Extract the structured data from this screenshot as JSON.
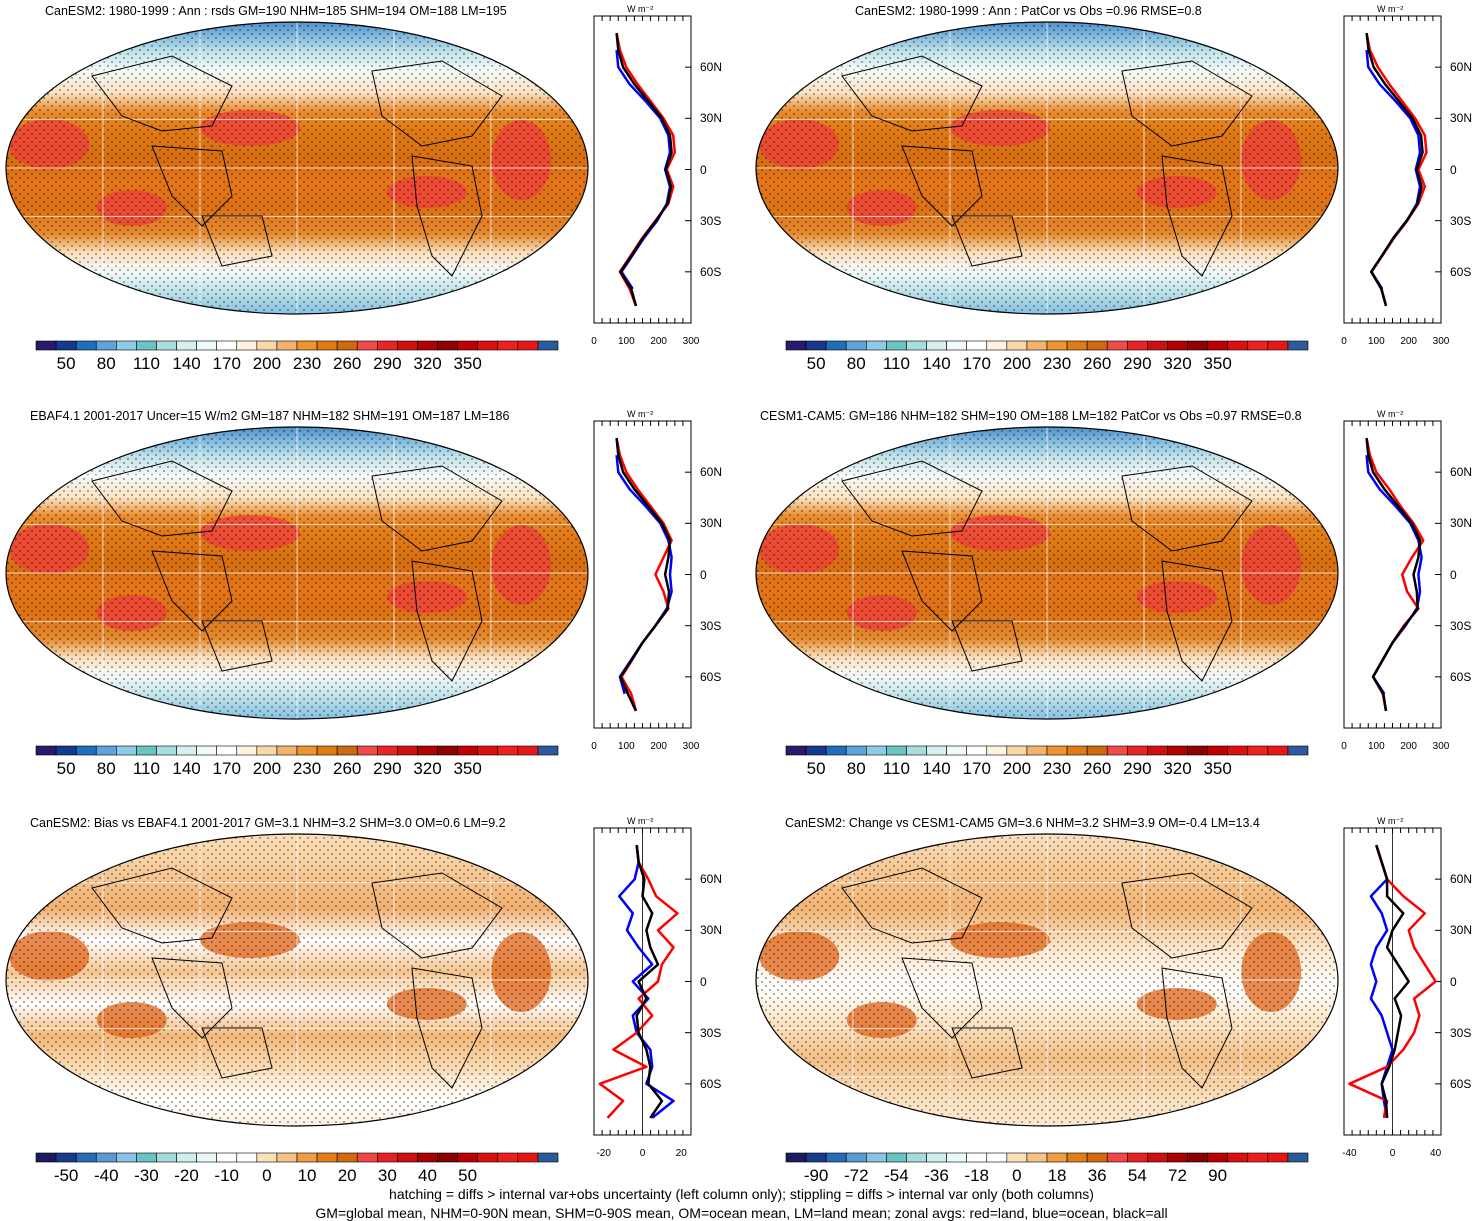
{
  "footer": {
    "line1": "hatching = diffs > internal var+obs uncertainty (left column only); stippling = diffs > internal var only (both columns)",
    "line2": "GM=global mean, NHM=0-90N mean, SHM=0-90S mean, OM=ocean mean, LM=land mean; zonal avgs: red=land, blue=ocean, black=all"
  },
  "zonal_unit": "W m⁻²",
  "lat_labels": [
    "60N",
    "30N",
    "0",
    "30S",
    "60S"
  ],
  "colors": {
    "land": "#ff0000",
    "ocean": "#0000ff",
    "all": "#000000"
  },
  "colorbars": {
    "abs": {
      "colors": [
        "#2a1a6b",
        "#153a8f",
        "#1f6fbd",
        "#5fa3dc",
        "#8fcbe8",
        "#67c3c4",
        "#a8dede",
        "#d6f0f0",
        "#f0fafa",
        "#ffffff",
        "#fff3e0",
        "#fbd8a8",
        "#f4b36b",
        "#ee9530",
        "#e07a12",
        "#cf6910",
        "#ee4b4b",
        "#e82525",
        "#d01010",
        "#b00000",
        "#8f0000",
        "#c00000",
        "#dc1010",
        "#ef2020",
        "#e81818",
        "#2c5a9c"
      ],
      "tick_labels": [
        "50",
        "80",
        "110",
        "140",
        "170",
        "200",
        "230",
        "260",
        "290",
        "320",
        "350"
      ]
    },
    "bias": {
      "colors": [
        "#1a1a60",
        "#183a8c",
        "#2a6ab4",
        "#5b9bd5",
        "#8bc2e6",
        "#6ac2c2",
        "#a5dbdb",
        "#cfeeee",
        "#ecf8f8",
        "#ffffff",
        "#ffffff",
        "#fbe1b8",
        "#f6c385",
        "#ef9d45",
        "#e37d18",
        "#d46a10",
        "#f04848",
        "#e42222",
        "#cc0f0f",
        "#a80000",
        "#880000",
        "#b80000",
        "#d81010",
        "#ec1e1e",
        "#e81515",
        "#2a5a98"
      ],
      "tick_labels": [
        "-50",
        "-40",
        "-30",
        "-20",
        "-10",
        "0",
        "10",
        "20",
        "30",
        "40",
        "50"
      ]
    },
    "change": {
      "colors": [
        "#1a1a60",
        "#183a8c",
        "#2a6ab4",
        "#5b9bd5",
        "#8bc2e6",
        "#6ac2c2",
        "#a5dbdb",
        "#cfeeee",
        "#ecf8f8",
        "#ffffff",
        "#ffffff",
        "#fbe1b8",
        "#f6c385",
        "#ef9d45",
        "#e37d18",
        "#d46a10",
        "#f04848",
        "#e42222",
        "#cc0f0f",
        "#a80000",
        "#880000",
        "#b80000",
        "#d81010",
        "#ec1e1e",
        "#e81515",
        "#2a5a98"
      ],
      "tick_labels": [
        "-90",
        "-72",
        "-54",
        "-36",
        "-18",
        "0",
        "18",
        "36",
        "54",
        "72",
        "90"
      ]
    }
  },
  "chart_data": [
    {
      "type": "map",
      "title": "CanESM2: 1980-1999 : Ann : rsds GM=190 NHM=185 SHM=194 OM=188 LM=195",
      "colorbar": "abs",
      "zonal": {
        "xticks": [
          "0",
          "100",
          "200",
          "300"
        ],
        "xlim": [
          0,
          300
        ],
        "lat": [
          -80,
          -70,
          -60,
          -50,
          -40,
          -30,
          -20,
          -10,
          0,
          10,
          20,
          30,
          40,
          50,
          60,
          70,
          80
        ],
        "land": [
          130,
          110,
          80,
          115,
          150,
          190,
          230,
          245,
          225,
          250,
          245,
          215,
          175,
          135,
          100,
          80,
          70
        ],
        "ocean": [
          null,
          120,
          85,
          120,
          155,
          195,
          225,
          235,
          220,
          235,
          230,
          205,
          160,
          110,
          75,
          70,
          null
        ],
        "all": [
          130,
          115,
          82,
          118,
          152,
          192,
          228,
          238,
          222,
          240,
          235,
          210,
          168,
          125,
          90,
          75,
          70
        ]
      }
    },
    {
      "type": "map",
      "title": "CanESM2: 1980-1999 : Ann : PatCor vs Obs =0.96 RMSE=0.8",
      "colorbar": "abs",
      "zonal": {
        "xticks": [
          "0",
          "100",
          "200",
          "300"
        ],
        "xlim": [
          0,
          300
        ],
        "lat": [
          -80,
          -70,
          -60,
          -50,
          -40,
          -30,
          -20,
          -10,
          0,
          10,
          20,
          30,
          40,
          50,
          60,
          70,
          80
        ],
        "land": [
          130,
          115,
          85,
          120,
          155,
          195,
          230,
          250,
          230,
          255,
          250,
          220,
          180,
          140,
          105,
          80,
          70
        ],
        "ocean": [
          null,
          118,
          85,
          120,
          155,
          195,
          225,
          235,
          222,
          235,
          230,
          205,
          160,
          110,
          75,
          70,
          null
        ],
        "all": [
          130,
          116,
          84,
          119,
          153,
          194,
          228,
          240,
          225,
          243,
          238,
          212,
          170,
          127,
          92,
          76,
          70
        ]
      }
    },
    {
      "type": "map",
      "title": "EBAF4.1 2001-2017 Uncer=15 W/m2 GM=187 NHM=182 SHM=191 OM=187 LM=186",
      "colorbar": "abs",
      "zonal": {
        "xticks": [
          "0",
          "100",
          "200",
          "300"
        ],
        "xlim": [
          0,
          300
        ],
        "lat": [
          -80,
          -70,
          -60,
          -50,
          -40,
          -30,
          -20,
          -10,
          0,
          10,
          20,
          30,
          40,
          50,
          60,
          70,
          80
        ],
        "land": [
          130,
          115,
          85,
          118,
          150,
          190,
          230,
          215,
          190,
          215,
          240,
          215,
          175,
          135,
          100,
          80,
          70
        ],
        "ocean": [
          null,
          95,
          80,
          115,
          150,
          190,
          225,
          240,
          235,
          240,
          230,
          205,
          160,
          110,
          75,
          70,
          null
        ],
        "all": [
          130,
          105,
          82,
          117,
          150,
          190,
          228,
          232,
          220,
          230,
          235,
          210,
          168,
          125,
          90,
          75,
          70
        ]
      }
    },
    {
      "type": "map",
      "title": "CESM1-CAM5: GM=186 NHM=182 SHM=190 OM=188 LM=182 PatCor vs Obs =0.97 RMSE=0.8",
      "colorbar": "abs",
      "zonal": {
        "xticks": [
          "0",
          "100",
          "200",
          "300"
        ],
        "xlim": [
          0,
          300
        ],
        "lat": [
          -80,
          -70,
          -60,
          -50,
          -40,
          -30,
          -20,
          -10,
          0,
          10,
          20,
          30,
          40,
          50,
          60,
          70,
          80
        ],
        "land": [
          130,
          120,
          90,
          120,
          150,
          185,
          230,
          195,
          180,
          210,
          245,
          215,
          175,
          140,
          100,
          80,
          70
        ],
        "ocean": [
          null,
          125,
          90,
          120,
          150,
          190,
          225,
          235,
          230,
          240,
          230,
          205,
          160,
          110,
          75,
          70,
          null
        ],
        "all": [
          130,
          122,
          90,
          120,
          150,
          188,
          228,
          225,
          215,
          230,
          235,
          210,
          168,
          125,
          90,
          75,
          70
        ]
      }
    },
    {
      "type": "map",
      "title": "CanESM2: Bias vs EBAF4.1 2001-2017 GM=3.1 NHM=3.2 SHM=3.0 OM=0.6 LM=9.2",
      "colorbar": "bias",
      "zonal": {
        "xticks": [
          "-20",
          "0",
          "20"
        ],
        "xlim": [
          -25,
          25
        ],
        "lat": [
          -80,
          -70,
          -60,
          -50,
          -40,
          -30,
          -20,
          -10,
          0,
          10,
          20,
          30,
          40,
          50,
          60,
          70,
          80
        ],
        "land": [
          -18,
          -10,
          -22,
          2,
          -15,
          -3,
          5,
          -2,
          8,
          10,
          16,
          8,
          18,
          7,
          3,
          -2,
          -3
        ],
        "ocean": [
          5,
          16,
          2,
          5,
          4,
          -3,
          -5,
          3,
          -5,
          5,
          -2,
          -8,
          -5,
          -12,
          -4,
          -2,
          -3
        ],
        "all": [
          4,
          10,
          3,
          4,
          2,
          -2,
          -3,
          2,
          -2,
          8,
          4,
          2,
          5,
          0,
          1,
          -2,
          -3
        ]
      }
    },
    {
      "type": "map",
      "title": "CanESM2: Change vs CESM1-CAM5 GM=3.6 NHM=3.2 SHM=3.9 OM=-0.4 LM=13.4",
      "colorbar": "change",
      "zonal": {
        "xticks": [
          "-40",
          "0",
          "40"
        ],
        "xlim": [
          -45,
          45
        ],
        "lat": [
          -80,
          -70,
          -60,
          -50,
          -40,
          -30,
          -20,
          -10,
          0,
          10,
          20,
          30,
          40,
          50,
          60,
          70,
          80
        ],
        "land": [
          -8,
          -5,
          -40,
          -5,
          10,
          20,
          25,
          20,
          40,
          30,
          20,
          15,
          30,
          10,
          -5,
          -10,
          -15
        ],
        "ocean": [
          -5,
          -8,
          -10,
          -5,
          0,
          -5,
          -10,
          -20,
          -15,
          -20,
          -15,
          -5,
          -10,
          -20,
          -5,
          -10,
          -15
        ],
        "all": [
          -5,
          -6,
          -10,
          -3,
          2,
          5,
          8,
          2,
          15,
          5,
          -5,
          0,
          10,
          -5,
          -5,
          -10,
          -15
        ]
      }
    }
  ]
}
